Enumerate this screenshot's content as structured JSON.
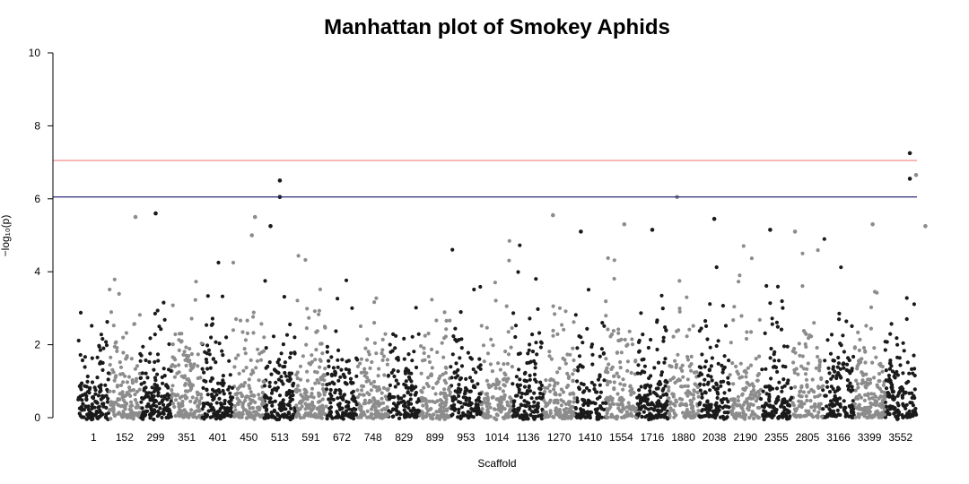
{
  "chart_data": {
    "type": "scatter",
    "title": "Manhattan plot of Smokey Aphids",
    "xlabel": "Scaffold",
    "ylabel": "−log₁₀(p)",
    "ylim": [
      0,
      10
    ],
    "y_ticks": [
      0,
      2,
      4,
      6,
      8,
      10
    ],
    "x_tick_labels": [
      "1",
      "152",
      "299",
      "351",
      "401",
      "450",
      "513",
      "591",
      "672",
      "748",
      "829",
      "899",
      "953",
      "1014",
      "1136",
      "1270",
      "1410",
      "1554",
      "1716",
      "1880",
      "2038",
      "2190",
      "2355",
      "2805",
      "3166",
      "3399",
      "3552"
    ],
    "colors": [
      "#1a1a1a",
      "#8c8c8c"
    ],
    "thresholds": [
      {
        "name": "genome-wide",
        "y": 7.05,
        "color": "#f08080"
      },
      {
        "name": "suggestive",
        "y": 6.05,
        "color": "#2b2b7a"
      }
    ],
    "grid": false,
    "legend": "none",
    "notable_points": [
      {
        "x_index": 6.5,
        "y": 6.5
      },
      {
        "x_index": 6.5,
        "y": 6.05
      },
      {
        "x_index": 1.85,
        "y": 5.5
      },
      {
        "x_index": 2.5,
        "y": 5.6
      },
      {
        "x_index": 5.7,
        "y": 5.5
      },
      {
        "x_index": 5.6,
        "y": 5.0
      },
      {
        "x_index": 6.2,
        "y": 5.25
      },
      {
        "x_index": 15.3,
        "y": 5.55
      },
      {
        "x_index": 16.2,
        "y": 5.1
      },
      {
        "x_index": 17.6,
        "y": 5.3
      },
      {
        "x_index": 18.5,
        "y": 5.15
      },
      {
        "x_index": 19.3,
        "y": 6.05
      },
      {
        "x_index": 20.5,
        "y": 5.45
      },
      {
        "x_index": 22.3,
        "y": 5.15
      },
      {
        "x_index": 23.1,
        "y": 5.1
      },
      {
        "x_index": 25.6,
        "y": 5.3
      },
      {
        "x_index": 26.8,
        "y": 7.25
      },
      {
        "x_index": 26.8,
        "y": 6.55
      },
      {
        "x_index": 27.0,
        "y": 6.65
      },
      {
        "x_index": 27.3,
        "y": 5.25
      }
    ]
  }
}
